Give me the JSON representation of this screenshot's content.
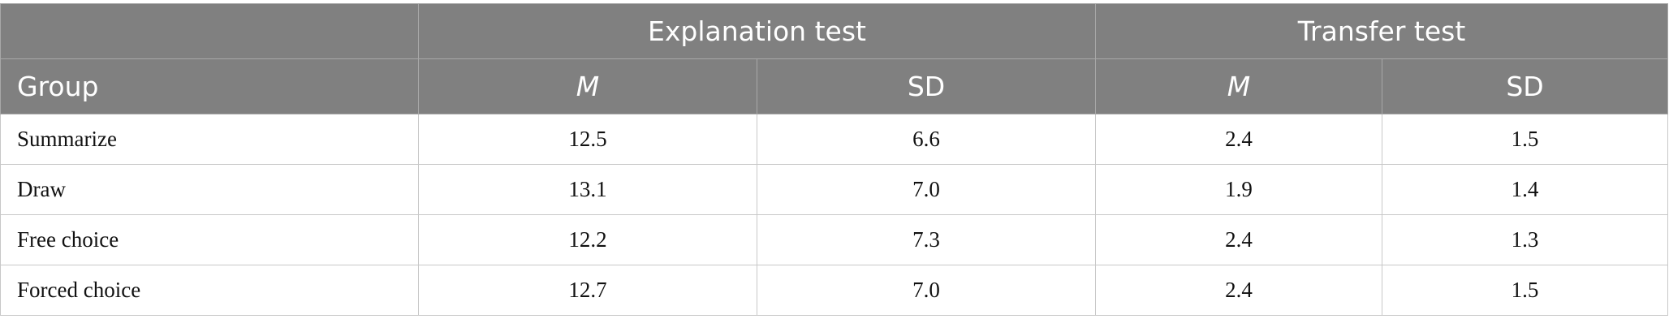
{
  "table": {
    "groups": [
      "Explanation test",
      "Transfer test"
    ],
    "columns": [
      "Group",
      "M",
      "SD",
      "M",
      "SD"
    ],
    "rows": [
      [
        "Summarize",
        "12.5",
        "6.6",
        "2.4",
        "1.5"
      ],
      [
        "Draw",
        "13.1",
        "7.0",
        "1.9",
        "1.4"
      ],
      [
        "Free choice",
        "12.2",
        "7.3",
        "2.4",
        "1.3"
      ],
      [
        "Forced choice",
        "12.7",
        "7.0",
        "2.4",
        "1.5"
      ]
    ]
  }
}
